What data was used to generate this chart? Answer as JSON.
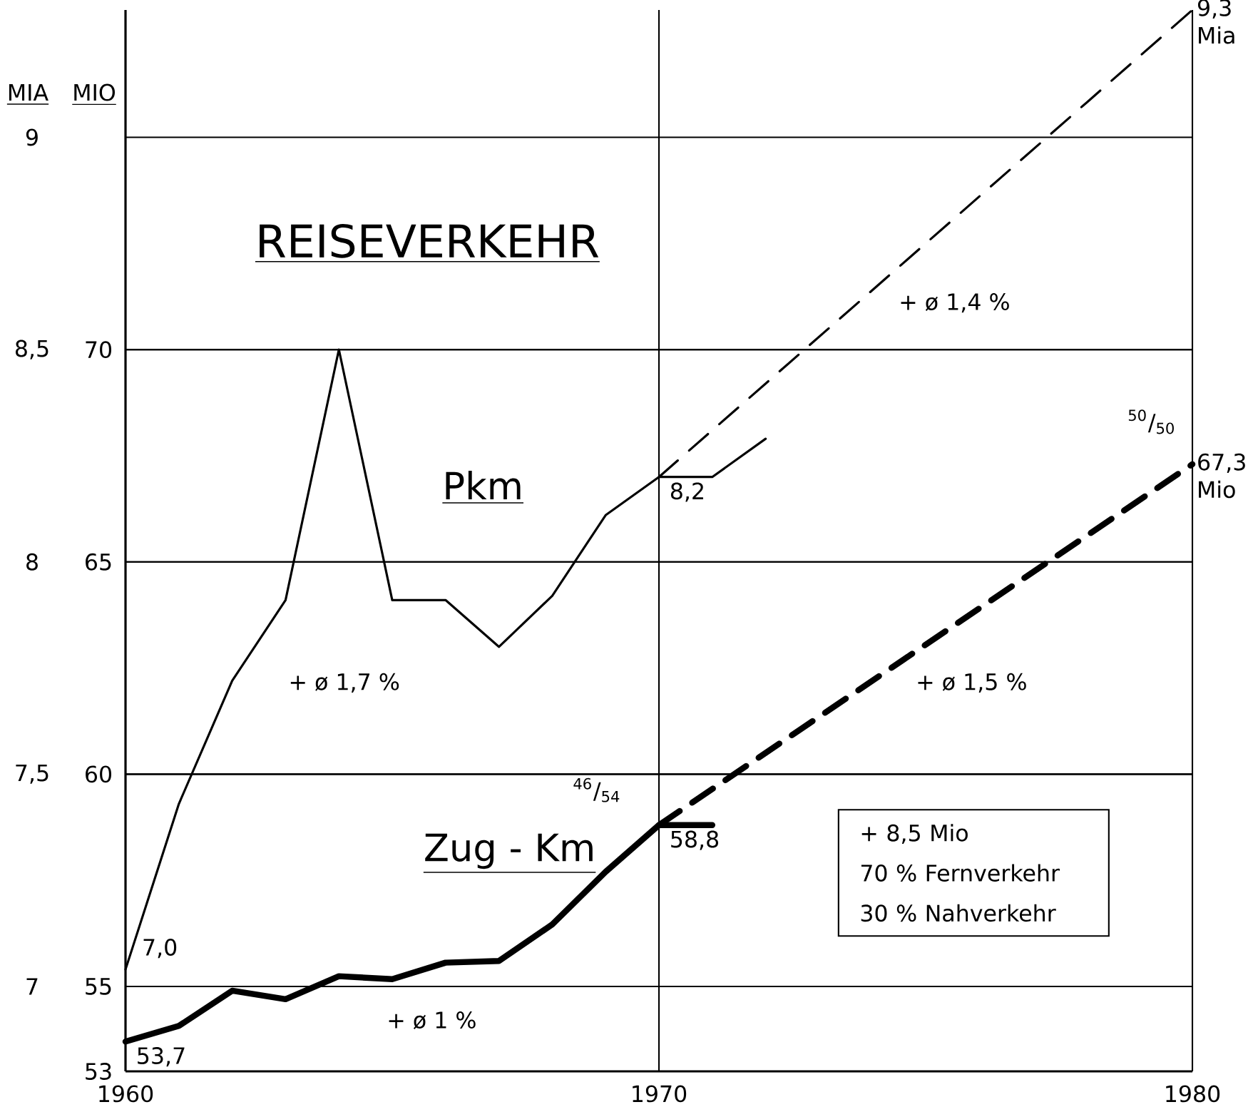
{
  "chart_data": {
    "type": "line",
    "title": "REISEVERKEHR",
    "ylabel": "MIO",
    "y2label": "MIA",
    "xlim": [
      1960,
      1980
    ],
    "xticks": [
      1960,
      1970,
      1980
    ],
    "ylim": [
      53,
      78
    ],
    "yticks": [
      53,
      55,
      60,
      65,
      70
    ],
    "y2lim": [
      6.8,
      9.3
    ],
    "y2ticks": [
      7,
      {
        "value": 7.5,
        "label": "7,5"
      },
      8,
      {
        "value": 8.5,
        "label": "8,5"
      },
      9
    ],
    "grid": true,
    "marker": "none",
    "series": [
      {
        "name": "Pkm",
        "axis": "y2",
        "color": "#000000",
        "line_style": "solid",
        "x": [
          1960,
          1961,
          1962,
          1963,
          1964,
          1965,
          1966,
          1967,
          1968,
          1969,
          1970,
          1971,
          1972
        ],
        "values": [
          7.04,
          7.43,
          7.72,
          7.91,
          8.5,
          7.91,
          7.91,
          7.8,
          7.92,
          8.11,
          8.2,
          8.2,
          8.29
        ],
        "value_labels": [
          "7,0",
          null,
          null,
          null,
          null,
          null,
          null,
          null,
          null,
          null,
          "8,2",
          null,
          null
        ]
      },
      {
        "axis": "y2",
        "color": "#000000",
        "line_style": "dashed",
        "x": [
          1970,
          1980
        ],
        "values": [
          8.2,
          9.3
        ],
        "value_labels": [
          null,
          "9,3 Mia"
        ]
      },
      {
        "name": "Zug - Km",
        "color": "#000000",
        "line_style": "solid",
        "x": [
          1960,
          1961,
          1962,
          1963,
          1964,
          1965,
          1966,
          1967,
          1968,
          1969,
          1970,
          1971
        ],
        "values": [
          53.7,
          54.07,
          54.9,
          54.7,
          55.24,
          55.17,
          55.56,
          55.6,
          56.46,
          57.7,
          58.8,
          58.8
        ],
        "value_labels": [
          "53,7",
          null,
          null,
          null,
          null,
          null,
          null,
          null,
          null,
          null,
          "58,8",
          null
        ]
      },
      {
        "color": "#000000",
        "line_style": "dashed",
        "x": [
          1970,
          1980
        ],
        "values": [
          58.8,
          67.3
        ],
        "value_labels": [
          null,
          "67,3 Mio"
        ]
      }
    ],
    "annotations": [
      "+ ø 1,4 %",
      "+ ø 1,7 %",
      "+ ø 1,5 %",
      "+ ø 1 %",
      "+ 8,5 Mio",
      "70 % Fernverkehr",
      "30 % Nahverkehr",
      "$^{46}$/$_{54}$",
      "$^{50}$/$_{50}$"
    ]
  }
}
